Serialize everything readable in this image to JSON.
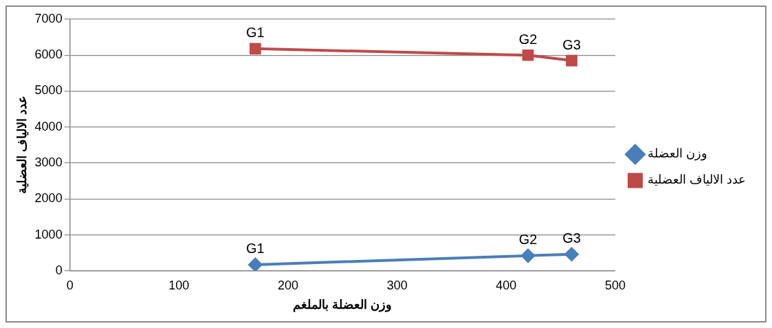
{
  "chart_data": {
    "type": "line",
    "xlabel": "وزن العضلة بالملغم",
    "ylabel": "عدد الالياف العضلية",
    "xlim": [
      0,
      500
    ],
    "xticks": [
      0,
      100,
      200,
      300,
      400,
      500
    ],
    "ylim": [
      0,
      7000
    ],
    "yticks": [
      0,
      1000,
      2000,
      3000,
      4000,
      5000,
      6000,
      7000
    ],
    "grid": "y",
    "legend": "right",
    "line_style": "solid",
    "series": [
      {
        "name": "وزن العضلة",
        "color": "#4a7ebb",
        "marker": "diamond",
        "x": [
          170,
          420,
          460
        ],
        "values": [
          170,
          420,
          460
        ]
      },
      {
        "name": "عدد الالياف العضلية",
        "color": "#be4b48",
        "marker": "square",
        "x": [
          170,
          420,
          460
        ],
        "values": [
          6180,
          6000,
          5850
        ]
      }
    ],
    "annotations": [
      {
        "text": "G1",
        "x": 170,
        "y": 170
      },
      {
        "text": "G2",
        "x": 420,
        "y": 420
      },
      {
        "text": "G3",
        "x": 460,
        "y": 460
      },
      {
        "text": "G1",
        "x": 170,
        "y": 6180
      },
      {
        "text": "G2",
        "x": 420,
        "y": 6000
      },
      {
        "text": "G3",
        "x": 460,
        "y": 5850
      }
    ]
  }
}
